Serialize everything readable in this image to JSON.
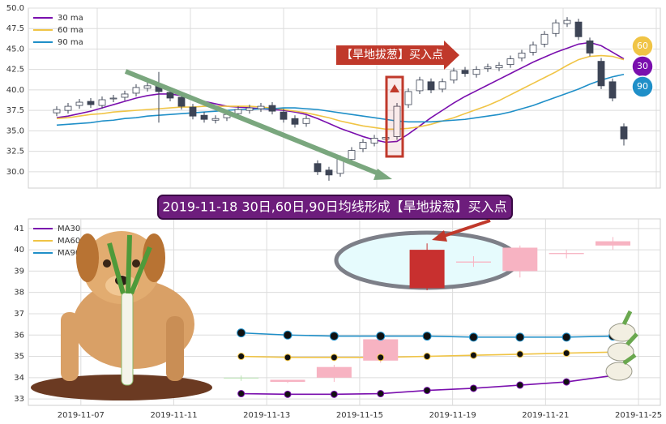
{
  "chart_data": [
    {
      "type": "candlestick",
      "open": [
        37.2,
        37.5,
        38.1,
        38.6,
        38.1,
        38.9,
        39.1,
        39.6,
        40.2,
        40.6,
        39.7,
        39.1,
        37.9,
        36.9,
        36.3,
        36.6,
        37.1,
        37.5,
        37.7,
        38.1,
        37.3,
        36.5,
        35.9,
        31.0,
        30.2,
        29.8,
        31.5,
        32.8,
        33.5,
        34.0,
        34.3,
        38.2,
        39.9,
        41.0,
        40.1,
        41.2,
        42.4,
        41.9,
        42.6,
        42.7,
        43.1,
        43.9,
        44.6,
        45.6,
        46.9,
        48.1,
        48.3,
        46.0,
        43.5,
        41.0,
        35.5
      ],
      "high": [
        38.0,
        38.4,
        38.9,
        39.0,
        39.2,
        39.4,
        39.9,
        40.7,
        40.9,
        42.2,
        40.1,
        39.5,
        38.3,
        37.3,
        36.9,
        37.4,
        38.0,
        38.2,
        38.4,
        38.5,
        37.7,
        36.9,
        36.9,
        31.4,
        30.6,
        32.0,
        33.0,
        34.0,
        34.5,
        34.6,
        38.4,
        40.2,
        41.6,
        41.4,
        41.4,
        42.7,
        42.8,
        42.9,
        43.2,
        43.4,
        44.2,
        44.9,
        45.9,
        47.2,
        48.6,
        48.9,
        48.7,
        46.4,
        43.9,
        41.4,
        35.9
      ],
      "low": [
        36.8,
        37.1,
        37.7,
        37.8,
        37.7,
        38.5,
        38.7,
        39.2,
        39.8,
        36.0,
        38.6,
        37.6,
        36.4,
        36.0,
        35.9,
        36.2,
        36.7,
        37.1,
        37.3,
        37.0,
        36.0,
        35.4,
        35.5,
        29.6,
        28.9,
        29.4,
        31.1,
        32.4,
        33.1,
        33.6,
        33.9,
        37.8,
        39.5,
        39.6,
        39.7,
        40.8,
        41.6,
        41.5,
        42.2,
        42.3,
        42.7,
        43.5,
        44.2,
        45.2,
        46.5,
        47.7,
        46.1,
        44.1,
        40.1,
        38.6,
        33.2
      ],
      "close": [
        37.6,
        38.0,
        38.5,
        38.2,
        38.8,
        39.0,
        39.5,
        40.3,
        40.5,
        39.8,
        39.0,
        38.0,
        36.8,
        36.4,
        36.5,
        37.0,
        37.6,
        37.8,
        38.0,
        37.4,
        36.4,
        35.8,
        36.5,
        30.0,
        29.6,
        31.6,
        32.6,
        33.6,
        34.1,
        34.2,
        38.0,
        39.8,
        41.2,
        40.0,
        41.0,
        42.3,
        42.0,
        42.5,
        42.8,
        43.0,
        43.8,
        44.5,
        45.5,
        46.8,
        48.2,
        48.5,
        46.5,
        44.5,
        40.5,
        39.0,
        34.0
      ],
      "up_color": "#ffffff",
      "down_color": "#3d4455",
      "series": [
        {
          "name": "30 ma",
          "color": "#7a0fae",
          "values": [
            36.6,
            36.8,
            37.1,
            37.4,
            37.8,
            38.2,
            38.6,
            39.0,
            39.3,
            39.5,
            39.5,
            39.3,
            39.0,
            38.6,
            38.3,
            38.0,
            37.9,
            37.8,
            37.7,
            37.6,
            37.5,
            37.3,
            37.0,
            36.5,
            35.9,
            35.3,
            34.8,
            34.3,
            33.9,
            33.6,
            33.7,
            34.6,
            35.6,
            36.6,
            37.5,
            38.4,
            39.2,
            39.9,
            40.6,
            41.3,
            42.0,
            42.7,
            43.4,
            44.0,
            44.6,
            45.1,
            45.6,
            45.8,
            45.4,
            44.6,
            43.8
          ]
        },
        {
          "name": "60 ma",
          "color": "#f0c445",
          "values": [
            36.5,
            36.6,
            36.8,
            37.0,
            37.1,
            37.3,
            37.4,
            37.5,
            37.6,
            37.7,
            37.8,
            37.9,
            37.9,
            38.0,
            38.0,
            38.0,
            38.0,
            38.0,
            37.9,
            37.8,
            37.6,
            37.4,
            37.2,
            36.9,
            36.6,
            36.2,
            35.9,
            35.6,
            35.4,
            35.2,
            35.2,
            35.3,
            35.5,
            35.8,
            36.2,
            36.6,
            37.1,
            37.6,
            38.1,
            38.7,
            39.4,
            40.1,
            40.8,
            41.5,
            42.2,
            43.0,
            43.7,
            44.1,
            44.2,
            44.1,
            43.7
          ]
        },
        {
          "name": "90 ma",
          "color": "#1f8fc8",
          "values": [
            35.7,
            35.8,
            35.9,
            36.0,
            36.2,
            36.3,
            36.5,
            36.6,
            36.8,
            36.9,
            37.0,
            37.1,
            37.2,
            37.3,
            37.4,
            37.5,
            37.6,
            37.6,
            37.7,
            37.7,
            37.8,
            37.8,
            37.7,
            37.6,
            37.4,
            37.2,
            37.0,
            36.8,
            36.6,
            36.4,
            36.2,
            36.1,
            36.1,
            36.1,
            36.2,
            36.3,
            36.4,
            36.6,
            36.8,
            37.0,
            37.3,
            37.7,
            38.1,
            38.6,
            39.1,
            39.6,
            40.1,
            40.7,
            41.2,
            41.6,
            41.9
          ]
        }
      ],
      "ylim": [
        28,
        50
      ],
      "yticks": [
        {
          "value": 30,
          "label": "30.0"
        },
        {
          "value": 32.5,
          "label": "32.5"
        },
        {
          "value": 35,
          "label": "35.0"
        },
        {
          "value": 37.5,
          "label": "37.5"
        },
        {
          "value": 40,
          "label": "40.0"
        },
        {
          "value": 42.5,
          "label": "42.5"
        },
        {
          "value": 45,
          "label": "45.0"
        },
        {
          "value": 47.5,
          "label": "47.5"
        },
        {
          "value": 50,
          "label": "50.0"
        }
      ],
      "grid": true,
      "legend": "upper left",
      "badges": [
        {
          "label": "60",
          "color": "#f0c445"
        },
        {
          "label": "30",
          "color": "#7a0fae"
        },
        {
          "label": "90",
          "color": "#1f8fc8"
        }
      ],
      "annotation": "【旱地拔葱】买入点"
    },
    {
      "type": "candlestick",
      "title": "2019-11-18 30日,60日,90日均线形成【旱地拔葱】买入点",
      "x": [
        3.45,
        4.45,
        5.45,
        6.45,
        7.45,
        8.45,
        9.45,
        10.45,
        11.45
      ],
      "open": [
        34.0,
        33.8,
        34.0,
        34.8,
        38.2,
        39.4,
        39.0,
        39.8,
        40.2
      ],
      "high": [
        34.1,
        33.9,
        34.6,
        35.8,
        40.3,
        39.7,
        40.2,
        40.0,
        40.6
      ],
      "low": [
        33.85,
        33.75,
        33.8,
        34.7,
        38.1,
        39.2,
        38.7,
        39.6,
        40.0
      ],
      "close": [
        33.98,
        33.9,
        34.5,
        35.8,
        40.0,
        39.45,
        40.1,
        39.85,
        40.4
      ],
      "colors": [
        "#b8e2b0",
        "#f7b3c2",
        "#f7b3c2",
        "#f7b3c2",
        "#c8302f",
        "#f7b3c2",
        "#f7b3c2",
        "#f7b3c2",
        "#f7b3c2"
      ],
      "series": [
        {
          "name": "MA30",
          "color": "#7a0fae",
          "values": [
            33.25,
            33.22,
            33.22,
            33.25,
            33.4,
            33.5,
            33.65,
            33.8,
            34.1
          ]
        },
        {
          "name": "MA60",
          "color": "#f0c445",
          "values": [
            35.0,
            34.95,
            34.95,
            34.95,
            35.0,
            35.05,
            35.1,
            35.15,
            35.2
          ]
        },
        {
          "name": "MA90",
          "color": "#1f8fc8",
          "values": [
            36.1,
            36.0,
            35.95,
            35.95,
            35.95,
            35.9,
            35.9,
            35.9,
            35.95
          ]
        }
      ],
      "xlim": [
        -1.13,
        12.47
      ],
      "xticks": [
        {
          "value": 0,
          "label": "2019-11-07"
        },
        {
          "value": 2,
          "label": "2019-11-11"
        },
        {
          "value": 4,
          "label": "2019-11-13"
        },
        {
          "value": 6,
          "label": "2019-11-15"
        },
        {
          "value": 8,
          "label": "2019-11-19"
        },
        {
          "value": 10,
          "label": "2019-11-21"
        },
        {
          "value": 12,
          "label": "2019-11-25"
        }
      ],
      "ylim": [
        32.7,
        41.45
      ],
      "yticks": [
        33,
        34,
        35,
        36,
        37,
        38,
        39,
        40,
        41
      ],
      "grid": true,
      "legend": "upper left"
    }
  ]
}
